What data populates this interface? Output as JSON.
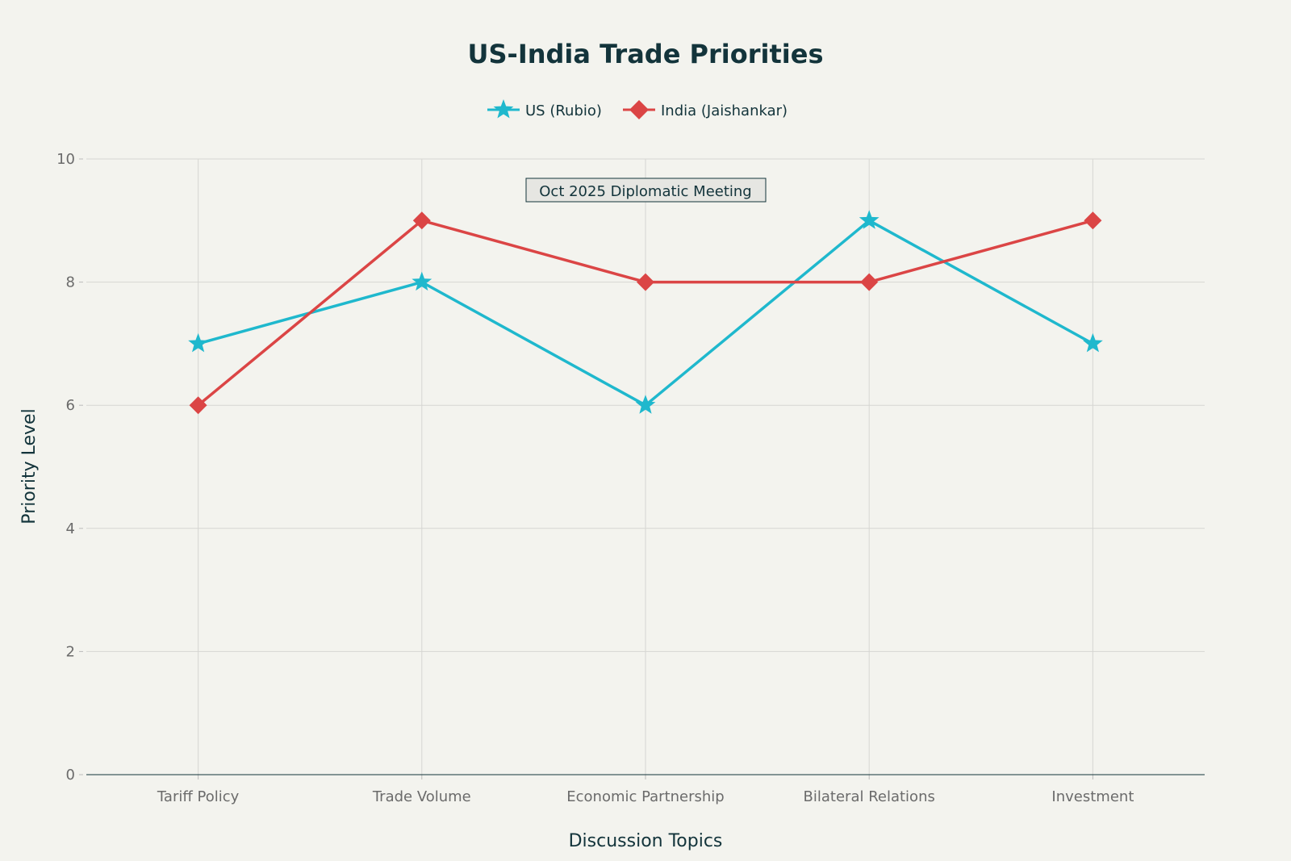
{
  "chart_data": {
    "type": "line",
    "title": "US-India Trade Priorities",
    "xlabel": "Discussion Topics",
    "ylabel": "Priority Level",
    "categories": [
      "Tariff Policy",
      "Trade Volume",
      "Economic Partnership",
      "Bilateral Relations",
      "Investment"
    ],
    "ylim": [
      0,
      10
    ],
    "yticks": [
      0,
      2,
      4,
      6,
      8,
      10
    ],
    "grid": true,
    "legend_position": "top-center",
    "series": [
      {
        "name": "US (Rubio)",
        "values": [
          7,
          8,
          6,
          9,
          7
        ],
        "color": "#1fb8cd",
        "marker": "star"
      },
      {
        "name": "India (Jaishankar)",
        "values": [
          6,
          9,
          8,
          8,
          9
        ],
        "color": "#db4545",
        "marker": "diamond"
      }
    ],
    "annotation": "Oct 2025 Diplomatic Meeting"
  }
}
